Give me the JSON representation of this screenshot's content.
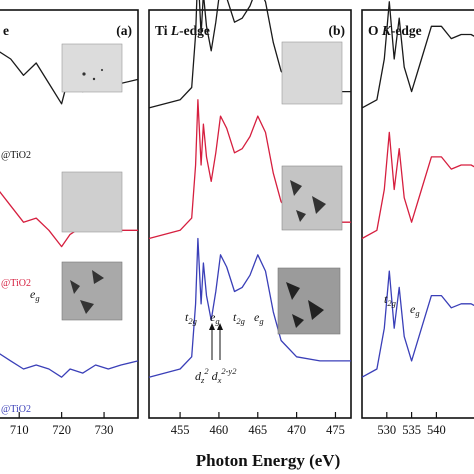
{
  "xlabel": "Photon Energy (eV)",
  "colors": {
    "black": "#1a1a1a",
    "red": "#d61f3f",
    "blue": "#3a3fb8"
  },
  "chart_data": [
    {
      "type": "line",
      "panel": "(a)",
      "title": "e",
      "xlim": [
        705,
        738
      ],
      "ticks": [
        710,
        720,
        730
      ],
      "tick_labels": [
        "710",
        "720",
        "730"
      ],
      "series_labels": [
        "@TiO2",
        "@TiO2",
        "@TiO2"
      ],
      "series_colors": [
        "black",
        "red",
        "blue"
      ],
      "annotation": "eg",
      "series": [
        {
          "color": "black",
          "offset": 0.8,
          "x": [
            705,
            708,
            711,
            714,
            717,
            720,
            722,
            725,
            728,
            731,
            734,
            738
          ],
          "y": [
            0.1,
            0.08,
            0.04,
            0.07,
            0.02,
            -0.03,
            0.05,
            0.0,
            0.03,
            0.04,
            0.02,
            0.03
          ]
        },
        {
          "color": "red",
          "offset": 0.44,
          "x": [
            705,
            708,
            711,
            714,
            717,
            720,
            722,
            725,
            728,
            731,
            734,
            738
          ],
          "y": [
            0.12,
            0.08,
            0.04,
            0.05,
            0.02,
            -0.02,
            0.01,
            0.03,
            0.02,
            0.03,
            0.02,
            0.02
          ]
        },
        {
          "color": "blue",
          "offset": 0.1,
          "x": [
            705,
            708,
            711,
            714,
            717,
            720,
            722,
            725,
            728,
            731,
            734,
            738
          ],
          "y": [
            0.06,
            0.04,
            0.02,
            0.03,
            0.02,
            0.0,
            0.02,
            0.01,
            0.03,
            0.02,
            0.03,
            0.04
          ]
        }
      ]
    },
    {
      "type": "line",
      "panel": "(b)",
      "title": "Ti L-edge",
      "xlim": [
        451,
        477
      ],
      "ticks": [
        455,
        460,
        465,
        470,
        475
      ],
      "tick_labels": [
        "455",
        "460",
        "465",
        "470",
        "475"
      ],
      "annotation_labels": [
        "t2g",
        "eg",
        "t2g",
        "eg"
      ],
      "annotation_d": [
        "dz2",
        "dx2-y2"
      ],
      "series": [
        {
          "color": "black",
          "offset": 0.76,
          "x": [
            451,
            455,
            456.5,
            457,
            457.3,
            457.7,
            458,
            458.4,
            459,
            459.6,
            460.2,
            461,
            462,
            463,
            464,
            465,
            466,
            467,
            468,
            470,
            473,
            477
          ],
          "y": [
            0.0,
            0.02,
            0.05,
            0.18,
            0.34,
            0.18,
            0.28,
            0.2,
            0.14,
            0.21,
            0.3,
            0.27,
            0.21,
            0.22,
            0.25,
            0.3,
            0.26,
            0.16,
            0.09,
            0.05,
            0.04,
            0.04
          ]
        },
        {
          "color": "red",
          "offset": 0.44,
          "x": [
            451,
            455,
            456.5,
            457,
            457.3,
            457.7,
            458,
            458.4,
            459,
            459.6,
            460.2,
            461,
            462,
            463,
            464,
            465,
            466,
            467,
            468,
            470,
            473,
            477
          ],
          "y": [
            0.0,
            0.02,
            0.05,
            0.18,
            0.34,
            0.18,
            0.28,
            0.2,
            0.14,
            0.21,
            0.3,
            0.27,
            0.21,
            0.22,
            0.25,
            0.3,
            0.26,
            0.16,
            0.09,
            0.05,
            0.04,
            0.04
          ]
        },
        {
          "color": "blue",
          "offset": 0.1,
          "x": [
            451,
            455,
            456.5,
            457,
            457.3,
            457.7,
            458,
            458.4,
            459,
            459.6,
            460.2,
            461,
            462,
            463,
            464,
            465,
            466,
            467,
            468,
            470,
            473,
            477
          ],
          "y": [
            0.0,
            0.02,
            0.05,
            0.18,
            0.34,
            0.18,
            0.28,
            0.2,
            0.14,
            0.21,
            0.3,
            0.27,
            0.21,
            0.22,
            0.25,
            0.3,
            0.26,
            0.16,
            0.09,
            0.05,
            0.04,
            0.04
          ]
        }
      ]
    },
    {
      "type": "line",
      "panel": "(c)",
      "title": "O K-edge",
      "xlim": [
        525,
        550
      ],
      "ticks": [
        530,
        535,
        540
      ],
      "tick_labels": [
        "530",
        "535",
        "540"
      ],
      "annotation_labels": [
        "t2g",
        "eg"
      ],
      "series": [
        {
          "color": "black",
          "offset": 0.76,
          "x": [
            525,
            528,
            529.5,
            530.5,
            531.5,
            532.5,
            533.5,
            535,
            537,
            539,
            541,
            543,
            545,
            547,
            550
          ],
          "y": [
            0.0,
            0.02,
            0.12,
            0.26,
            0.12,
            0.22,
            0.1,
            0.04,
            0.12,
            0.2,
            0.2,
            0.17,
            0.18,
            0.18,
            0.16
          ]
        },
        {
          "color": "red",
          "offset": 0.44,
          "x": [
            525,
            528,
            529.5,
            530.5,
            531.5,
            532.5,
            533.5,
            535,
            537,
            539,
            541,
            543,
            545,
            547,
            550
          ],
          "y": [
            0.0,
            0.02,
            0.12,
            0.26,
            0.12,
            0.22,
            0.1,
            0.04,
            0.12,
            0.2,
            0.2,
            0.17,
            0.18,
            0.18,
            0.16
          ]
        },
        {
          "color": "blue",
          "offset": 0.1,
          "x": [
            525,
            528,
            529.5,
            530.5,
            531.5,
            532.5,
            533.5,
            535,
            537,
            539,
            541,
            543,
            545,
            547,
            550
          ],
          "y": [
            0.0,
            0.02,
            0.12,
            0.26,
            0.12,
            0.22,
            0.1,
            0.04,
            0.12,
            0.2,
            0.2,
            0.17,
            0.18,
            0.18,
            0.16
          ]
        }
      ]
    }
  ]
}
